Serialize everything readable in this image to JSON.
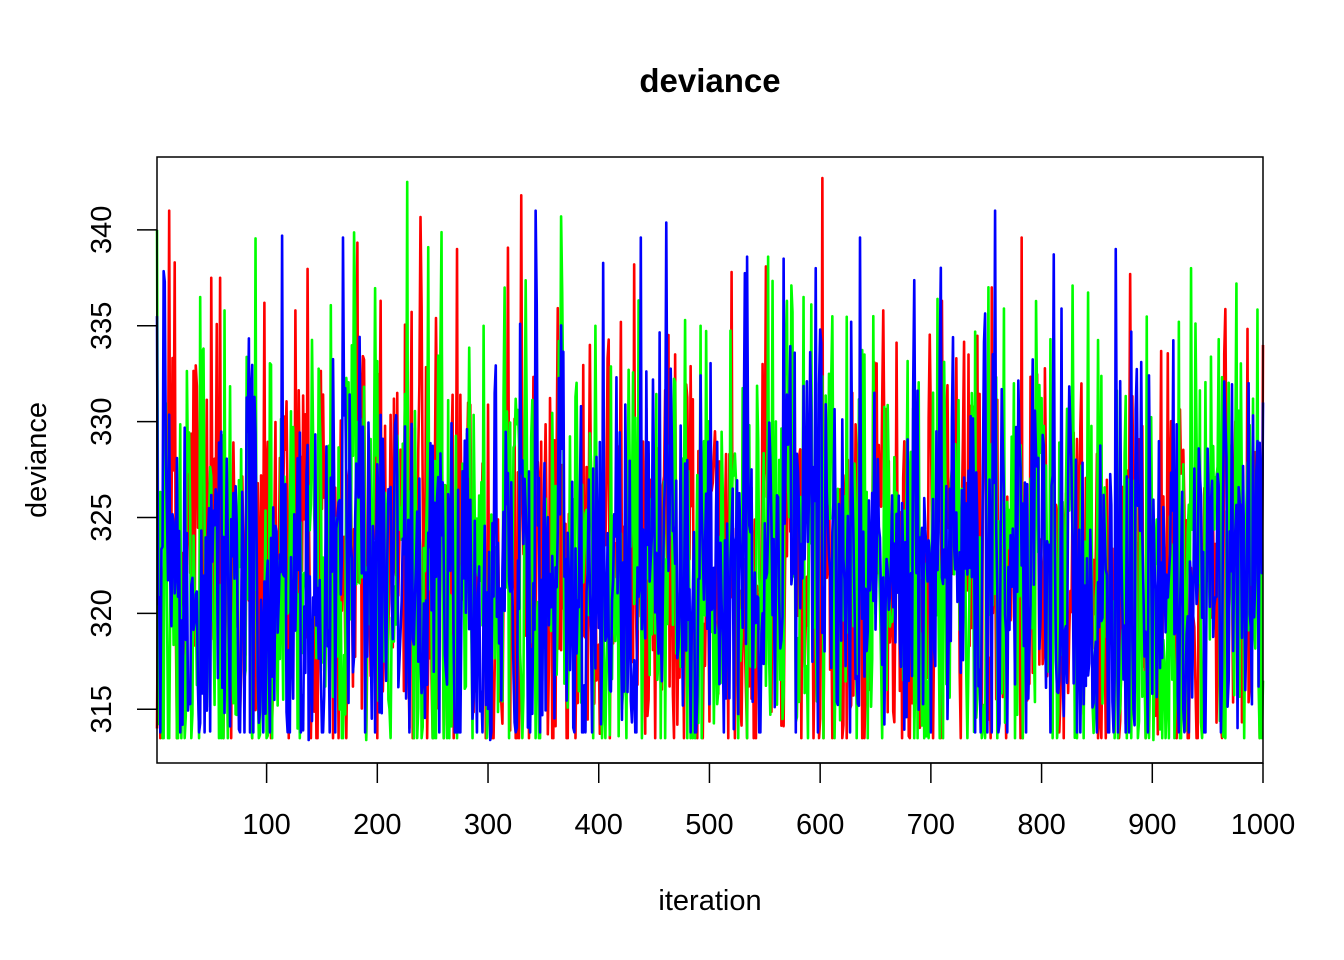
{
  "chart_data": {
    "type": "line",
    "title": "deviance",
    "xlabel": "iteration",
    "ylabel": "deviance",
    "xlim": [
      1,
      1000
    ],
    "ylim": [
      312.2,
      343.8
    ],
    "x_ticks": [
      100,
      200,
      300,
      400,
      500,
      600,
      700,
      800,
      900,
      1000
    ],
    "x_tick_labels": [
      "100",
      "200",
      "300",
      "400",
      "500",
      "600",
      "700",
      "800",
      "900",
      "1000"
    ],
    "y_ticks": [
      315,
      320,
      325,
      330,
      335,
      340
    ],
    "y_tick_labels": [
      "315",
      "320",
      "325",
      "330",
      "335",
      "340"
    ],
    "grid": false,
    "legend": "none",
    "n_iterations": 1000,
    "series_summary": "Three overlaid MCMC trace chains; values oscillate roughly between 313 and 343, centered near 322",
    "series": [
      {
        "color": "#ff0000",
        "anchors": [
          [
            1,
            314.0
          ],
          [
            12,
            341.0
          ],
          [
            17,
            338.3
          ],
          [
            50,
            337.5
          ],
          [
            58,
            337.5
          ],
          [
            98,
            336.2
          ],
          [
            126,
            335.8
          ],
          [
            203,
            336.3
          ],
          [
            218,
            331.5
          ],
          [
            240,
            336.0
          ],
          [
            272,
            339.0
          ],
          [
            330,
            341.8
          ],
          [
            392,
            334.0
          ],
          [
            408,
            333.3
          ],
          [
            420,
            335.2
          ],
          [
            432,
            338.2
          ],
          [
            520,
            337.8
          ],
          [
            548,
            333.0
          ],
          [
            602,
            342.7
          ],
          [
            657,
            335.8
          ],
          [
            680,
            313.6
          ],
          [
            710,
            336.3
          ],
          [
            734,
            333.5
          ],
          [
            755,
            337.0
          ],
          [
            782,
            339.6
          ],
          [
            816,
            313.8
          ],
          [
            905,
            313.7
          ],
          [
            1000,
            334.0
          ]
        ],
        "mean": 322.0,
        "spread": 6.0,
        "min": 313.5,
        "max": 342.5
      },
      {
        "color": "#00ff00",
        "anchors": [
          [
            1,
            340.0
          ],
          [
            40,
            336.5
          ],
          [
            62,
            335.8
          ],
          [
            110,
            315.2
          ],
          [
            128,
            314.0
          ],
          [
            190,
            313.4
          ],
          [
            227,
            342.5
          ],
          [
            246,
            339.1
          ],
          [
            265,
            313.5
          ],
          [
            296,
            335.0
          ],
          [
            364,
            334.2
          ],
          [
            397,
            335.0
          ],
          [
            418,
            313.6
          ],
          [
            492,
            335.0
          ],
          [
            553,
            338.6
          ],
          [
            570,
            336.3
          ],
          [
            585,
            336.5
          ],
          [
            648,
            335.5
          ],
          [
            706,
            336.4
          ],
          [
            808,
            334.3
          ],
          [
            828,
            337.1
          ],
          [
            901,
            313.4
          ],
          [
            935,
            338.0
          ],
          [
            976,
            337.2
          ],
          [
            1000,
            316.5
          ]
        ],
        "mean": 322.0,
        "spread": 6.0,
        "min": 313.5,
        "max": 342.0
      },
      {
        "color": "#0000ff",
        "anchors": [
          [
            1,
            335.5
          ],
          [
            24,
            314.2
          ],
          [
            114,
            339.7
          ],
          [
            138,
            313.4
          ],
          [
            169,
            339.6
          ],
          [
            204,
            314.8
          ],
          [
            302,
            313.4
          ],
          [
            329,
            335.1
          ],
          [
            349,
            314.7
          ],
          [
            426,
            315.9
          ],
          [
            438,
            339.6
          ],
          [
            534,
            338.6
          ],
          [
            567,
            338.5
          ],
          [
            596,
            338.0
          ],
          [
            636,
            339.6
          ],
          [
            758,
            341.0
          ],
          [
            818,
            335.9
          ],
          [
            867,
            339.0
          ],
          [
            883,
            315.0
          ],
          [
            1000,
            331.0
          ]
        ],
        "mean": 322.0,
        "spread": 5.6,
        "min": 313.8,
        "max": 341.0
      }
    ]
  }
}
